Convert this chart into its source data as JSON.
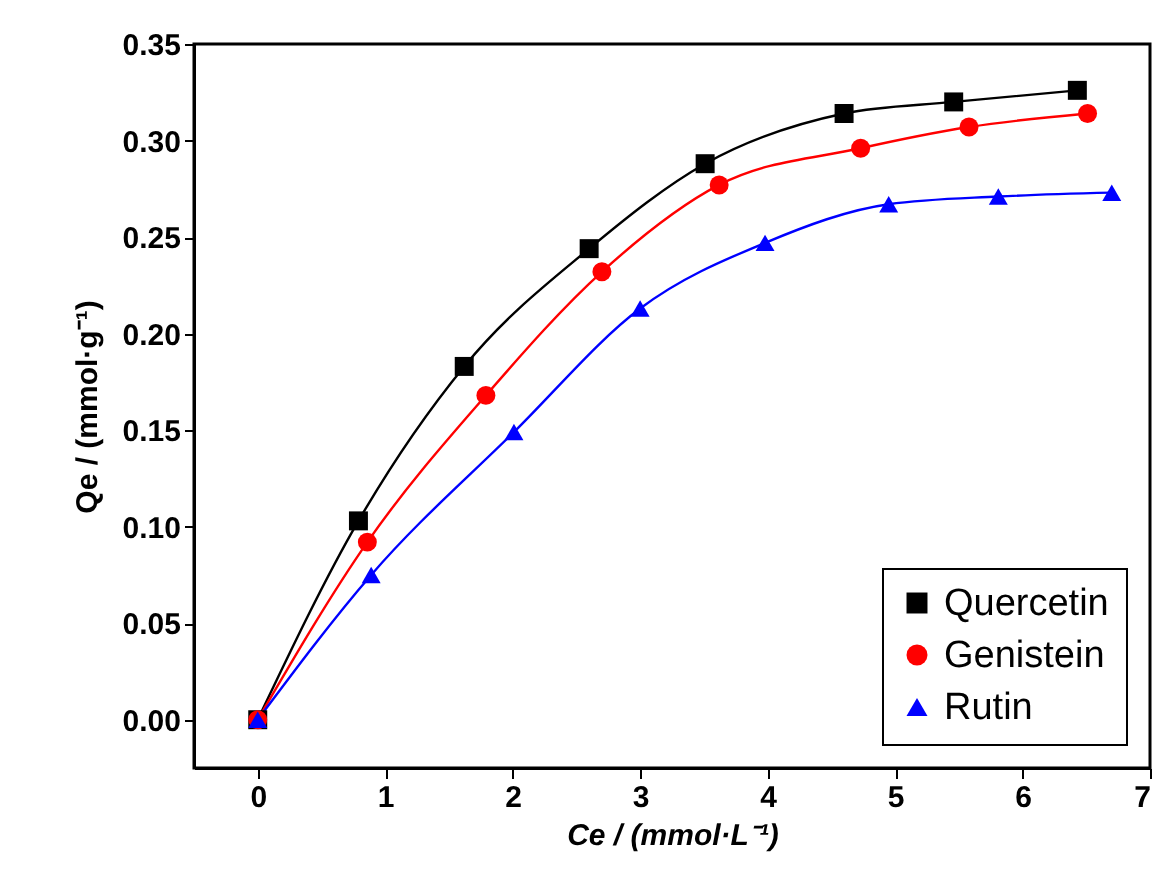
{
  "chart_data": {
    "type": "line",
    "xlabel": "Ce / (mmol·L⁻¹)",
    "ylabel": "Qe / (mmol·g⁻¹)",
    "xlim": [
      -0.5,
      7
    ],
    "xticks": [
      0,
      1,
      2,
      3,
      4,
      5,
      6,
      7
    ],
    "ylim": [
      -0.025,
      0.35
    ],
    "yticks": [
      {
        "value": 0,
        "label": "0.00"
      },
      {
        "value": 0.05,
        "label": "0.05"
      },
      {
        "value": 0.1,
        "label": "0.10"
      },
      {
        "value": 0.15,
        "label": "0.15"
      },
      {
        "value": 0.2,
        "label": "0.20"
      },
      {
        "value": 0.25,
        "label": "0.25"
      },
      {
        "value": 0.3,
        "label": "0.30"
      },
      {
        "value": 0.35,
        "label": "0.35"
      }
    ],
    "grid": false,
    "legend": "bottom right",
    "line_style": "solid",
    "series": [
      {
        "name": "Quercetin",
        "color": "#000000",
        "marker": "square",
        "x": [
          0,
          0.79,
          1.62,
          2.6,
          3.51,
          4.6,
          5.46,
          6.43
        ],
        "values": [
          0,
          0.103,
          0.183,
          0.244,
          0.288,
          0.314,
          0.32,
          0.326
        ]
      },
      {
        "name": "Genistein",
        "color": "#ff0000",
        "marker": "circle",
        "x": [
          0,
          0.86,
          1.79,
          2.7,
          3.62,
          4.73,
          5.58,
          6.51
        ],
        "values": [
          0,
          0.092,
          0.168,
          0.232,
          0.277,
          0.296,
          0.307,
          0.314
        ]
      },
      {
        "name": "Rutin",
        "color": "#0000ff",
        "marker": "triangle",
        "x": [
          0,
          0.89,
          2.01,
          3.0,
          3.98,
          4.95,
          5.81,
          6.7
        ],
        "values": [
          0,
          0.075,
          0.149,
          0.213,
          0.247,
          0.267,
          0.271,
          0.273
        ]
      }
    ]
  }
}
